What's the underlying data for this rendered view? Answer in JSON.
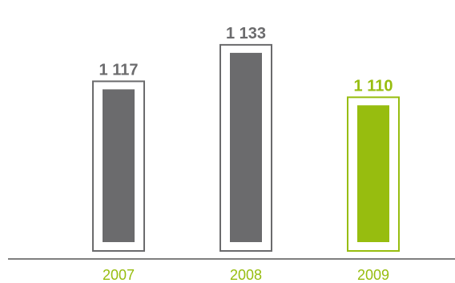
{
  "chart_data": {
    "type": "bar",
    "categories": [
      "2007",
      "2008",
      "2009"
    ],
    "values": [
      1117,
      1133,
      1110
    ],
    "value_labels": [
      "1 117",
      "1 133",
      "1 110"
    ],
    "highlight_index": 2,
    "title": "",
    "xlabel": "",
    "ylabel": "",
    "grid": false,
    "colors": {
      "bar": "#6b6b6d",
      "highlight": "#97bd0f",
      "frame": "#6b6b6d",
      "highlight_frame": "#97bd0f",
      "value_text": "#6b6b6d",
      "highlight_text": "#97bd0f",
      "axis": "#555555",
      "category_text": "#97bd0f"
    }
  }
}
